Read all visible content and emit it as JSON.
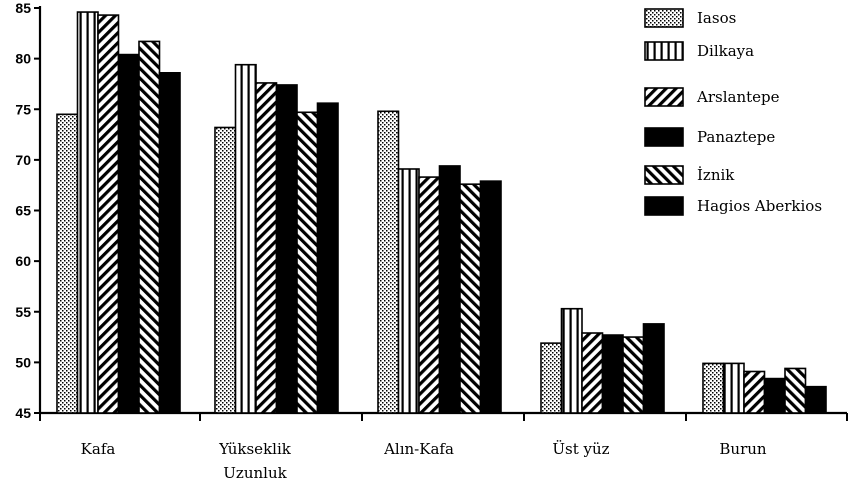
{
  "chart_data": {
    "type": "bar",
    "title": "",
    "xlabel": "",
    "ylabel": "",
    "ylim": [
      45,
      85
    ],
    "yticks": [
      45,
      50,
      55,
      60,
      65,
      70,
      75,
      80,
      85
    ],
    "categories": [
      [
        "Kafa"
      ],
      [
        "Yükseklik",
        "Uzunluk"
      ],
      [
        "Alın-Kafa"
      ],
      [
        "Üst yüz"
      ],
      [
        "Burun"
      ]
    ],
    "series": [
      {
        "name": "Iasos",
        "pattern": "dots",
        "values": [
          74.5,
          73.2,
          74.8,
          51.9,
          49.9
        ]
      },
      {
        "name": "Dilkaya",
        "pattern": "vstripes",
        "values": [
          84.6,
          79.4,
          69.1,
          55.3,
          49.9
        ]
      },
      {
        "name": "Arslantepe",
        "pattern": "back-diag",
        "values": [
          84.3,
          77.6,
          68.3,
          52.9,
          49.1
        ]
      },
      {
        "name": "Panaztepe",
        "pattern": "solid",
        "values": [
          80.4,
          77.4,
          69.4,
          52.7,
          48.4
        ]
      },
      {
        "name": "İznik",
        "pattern": "fwd-diag",
        "values": [
          81.7,
          74.7,
          67.6,
          52.5,
          49.4
        ]
      },
      {
        "name": "Hagios Aberkios",
        "pattern": "solid",
        "values": [
          78.6,
          75.6,
          67.9,
          53.8,
          47.6
        ]
      }
    ],
    "grid": false,
    "legend_position": "top-right"
  }
}
